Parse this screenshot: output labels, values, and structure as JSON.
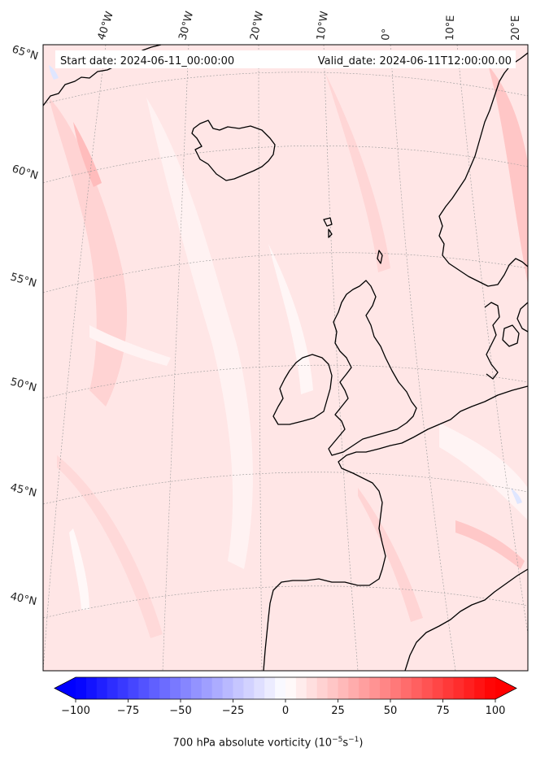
{
  "header": {
    "start_date": "Start date: 2024-06-11_00:00:00",
    "valid_date": "Valid_date: 2024-06-11T12:00:00.00"
  },
  "map": {
    "lon_labels": [
      "40°W",
      "30°W",
      "20°W",
      "10°W",
      "0°",
      "10°E",
      "20°E"
    ],
    "lat_labels": [
      "65°N",
      "60°N",
      "55°N",
      "50°N",
      "45°N",
      "40°N"
    ],
    "field_colors": {
      "light": "#ffe6e6",
      "mid": "#ffd3d3",
      "strong": "#ffbcbc",
      "white": "#fff6f6",
      "blue": "#dfe6ff"
    }
  },
  "colorbar": {
    "min": -100,
    "max": 100,
    "steps": 40,
    "ticks": [
      "−100",
      "−75",
      "−50",
      "−25",
      "0",
      "25",
      "50",
      "75",
      "100"
    ],
    "title_main": "700 hPa absolute vorticity (10",
    "title_exp1": "−5",
    "title_mid": "s",
    "title_exp2": "−1",
    "title_end": ")",
    "color_min": "#0000ff",
    "color_zero": "#ffffff",
    "color_max": "#ff0000"
  }
}
